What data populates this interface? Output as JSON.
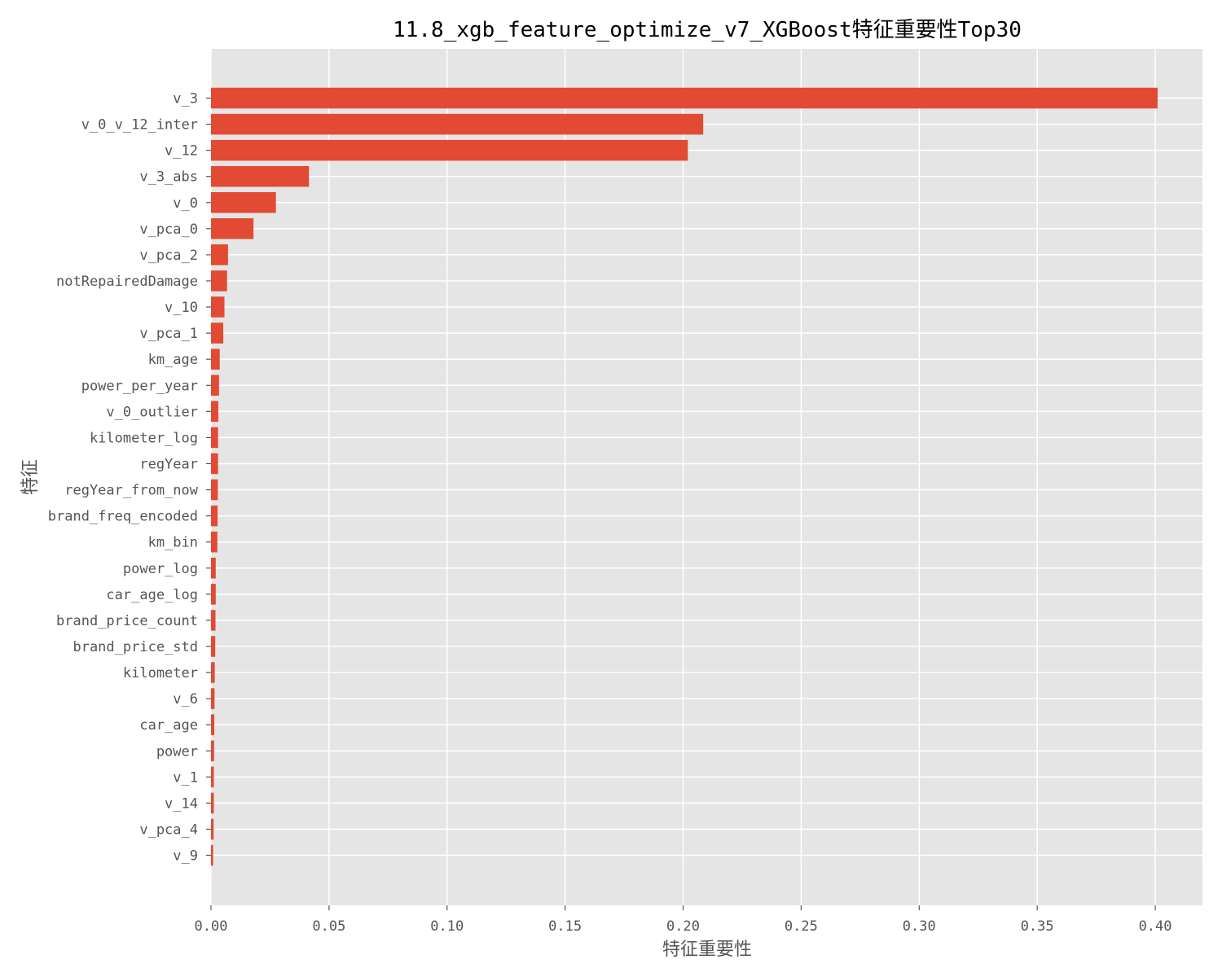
{
  "chart_data": {
    "type": "bar",
    "orientation": "horizontal",
    "title": "11.8_xgb_feature_optimize_v7_XGBoost特征重要性Top30",
    "xlabel": "特征重要性",
    "ylabel": "特征",
    "xlim": [
      0,
      0.42
    ],
    "xticks": [
      "0.00",
      "0.05",
      "0.10",
      "0.15",
      "0.20",
      "0.25",
      "0.30",
      "0.35",
      "0.40"
    ],
    "categories": [
      "v_3",
      "v_0_v_12_inter",
      "v_12",
      "v_3_abs",
      "v_0",
      "v_pca_0",
      "v_pca_2",
      "notRepairedDamage",
      "v_10",
      "v_pca_1",
      "km_age",
      "power_per_year",
      "v_0_outlier",
      "kilometer_log",
      "regYear",
      "regYear_from_now",
      "brand_freq_encoded",
      "km_bin",
      "power_log",
      "car_age_log",
      "brand_price_count",
      "brand_price_std",
      "kilometer",
      "v_6",
      "car_age",
      "power",
      "v_1",
      "v_14",
      "v_pca_4",
      "v_9"
    ],
    "values": [
      0.401,
      0.2085,
      0.202,
      0.0415,
      0.0275,
      0.018,
      0.0072,
      0.0068,
      0.0057,
      0.0052,
      0.0037,
      0.0034,
      0.0031,
      0.003,
      0.003,
      0.0029,
      0.0028,
      0.0027,
      0.002,
      0.002,
      0.0019,
      0.0018,
      0.0016,
      0.0015,
      0.0014,
      0.0013,
      0.0012,
      0.0012,
      0.0011,
      0.0009
    ],
    "bar_color": "#E24A33",
    "background_color": "#E5E5E5",
    "grid": true
  }
}
